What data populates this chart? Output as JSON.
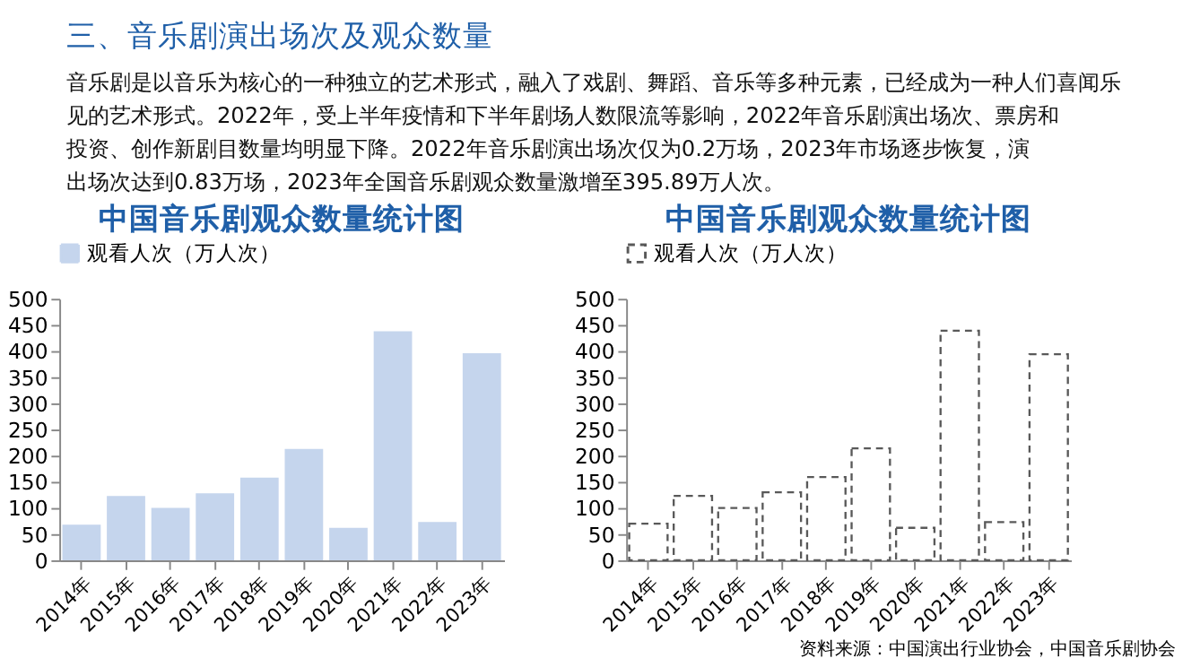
{
  "chart_data": [
    {
      "type": "bar",
      "title": "中国音乐剧观众数量统计图",
      "categories": [
        "2014年",
        "2015年",
        "2016年",
        "2017年",
        "2018年",
        "2019年",
        "2020年",
        "2021年",
        "2022年",
        "2023年"
      ],
      "series": [
        {
          "name": "观看人次（万人次）",
          "color": "#c5d5ed",
          "values": [
            68,
            123,
            100,
            128,
            158,
            213,
            62,
            438,
            73,
            396
          ]
        }
      ],
      "ylim": [
        0,
        500
      ],
      "yticks": [
        0,
        50,
        100,
        150,
        200,
        250,
        300,
        350,
        400,
        450,
        500
      ],
      "grid": false,
      "legend": "top",
      "annotations": [
        "三、音乐剧演出场次及观众数量",
        "音乐剧是以音乐为核心的一种独立的艺术形式，融入了戏剧、舞蹈、音乐等多种元素，已经成为一种人们喜闻乐见的艺术形式。2022年，受上半年疫情和下半年剧场人数限流等影响，2022年音乐剧演出场次、票房和投资、创作新剧目数量均明显下降。2022年音乐剧演出场次仅为0.2万场，2023年市场逐步恢复，演出场次达到0.83万场，2023年全国音乐剧观众数量激增至395.89万人次。"
      ]
    },
    {
      "type": "bar",
      "title": "中国音乐剧观众数量统计图",
      "categories": [
        "2014年",
        "2015年",
        "2016年",
        "2017年",
        "2018年",
        "2019年",
        "2020年",
        "2021年",
        "2022年",
        "2023年"
      ],
      "series": [
        {
          "name": "观看人次（万人次）",
          "color": "#595959",
          "line_style": "dashed",
          "values": [
            70,
            123,
            100,
            130,
            159,
            214,
            62,
            439,
            73,
            394
          ]
        }
      ],
      "ylim": [
        0,
        500
      ],
      "yticks": [
        0,
        50,
        100,
        150,
        200,
        250,
        300,
        350,
        400,
        450,
        500
      ],
      "grid": false,
      "legend": "top",
      "annotations": [
        "资料来源：中国演出行业协会，中国音乐剧协会"
      ]
    }
  ]
}
